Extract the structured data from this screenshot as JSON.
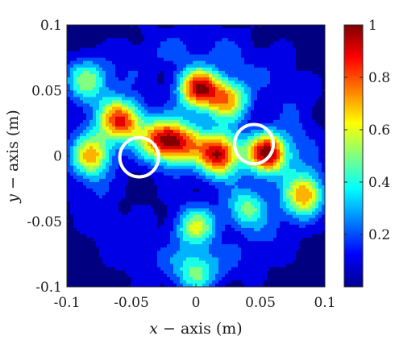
{
  "chart_data": {
    "type": "heatmap",
    "title": "",
    "xlabel": {
      "var": "x",
      "text": " − axis (m)"
    },
    "ylabel": {
      "var": "y",
      "text": " − axis (m)"
    },
    "xlim": [
      -0.1,
      0.1
    ],
    "ylim": [
      -0.1,
      0.1
    ],
    "x_ticks": [
      "-0.1",
      "-0.05",
      "0",
      "0.05",
      "0.1"
    ],
    "y_ticks": [
      "-0.1",
      "-0.05",
      "0",
      "0.05",
      "0.1"
    ],
    "colorbar": {
      "colormap": "jet",
      "range": [
        0,
        1
      ],
      "ticks": [
        "0.2",
        "0.4",
        "0.6",
        "0.8",
        "1"
      ]
    },
    "peaks": [
      {
        "x": 0.056,
        "y": 0.002,
        "value": 0.97
      },
      {
        "x": 0.018,
        "y": 0.001,
        "value": 0.9
      },
      {
        "x": 0.002,
        "y": 0.052,
        "value": 0.86
      },
      {
        "x": 0.025,
        "y": 0.043,
        "value": 0.64
      },
      {
        "x": -0.058,
        "y": 0.027,
        "value": 0.82
      },
      {
        "x": -0.028,
        "y": 0.012,
        "value": 0.74
      },
      {
        "x": -0.01,
        "y": 0.01,
        "value": 0.6
      },
      {
        "x": 0.085,
        "y": -0.03,
        "value": 0.62
      },
      {
        "x": -0.088,
        "y": 0.06,
        "value": 0.56
      },
      {
        "x": -0.08,
        "y": 0.0,
        "value": 0.55
      },
      {
        "x": 0.0,
        "y": -0.055,
        "value": 0.52
      },
      {
        "x": 0.0,
        "y": -0.09,
        "value": 0.35
      },
      {
        "x": 0.04,
        "y": -0.04,
        "value": 0.45
      }
    ],
    "annotations": [
      {
        "shape": "circle",
        "x": -0.044,
        "y": -0.001,
        "radius": 0.015,
        "color": "#ffffff"
      },
      {
        "shape": "circle",
        "x": 0.045,
        "y": 0.009,
        "radius": 0.015,
        "color": "#ffffff"
      }
    ]
  }
}
